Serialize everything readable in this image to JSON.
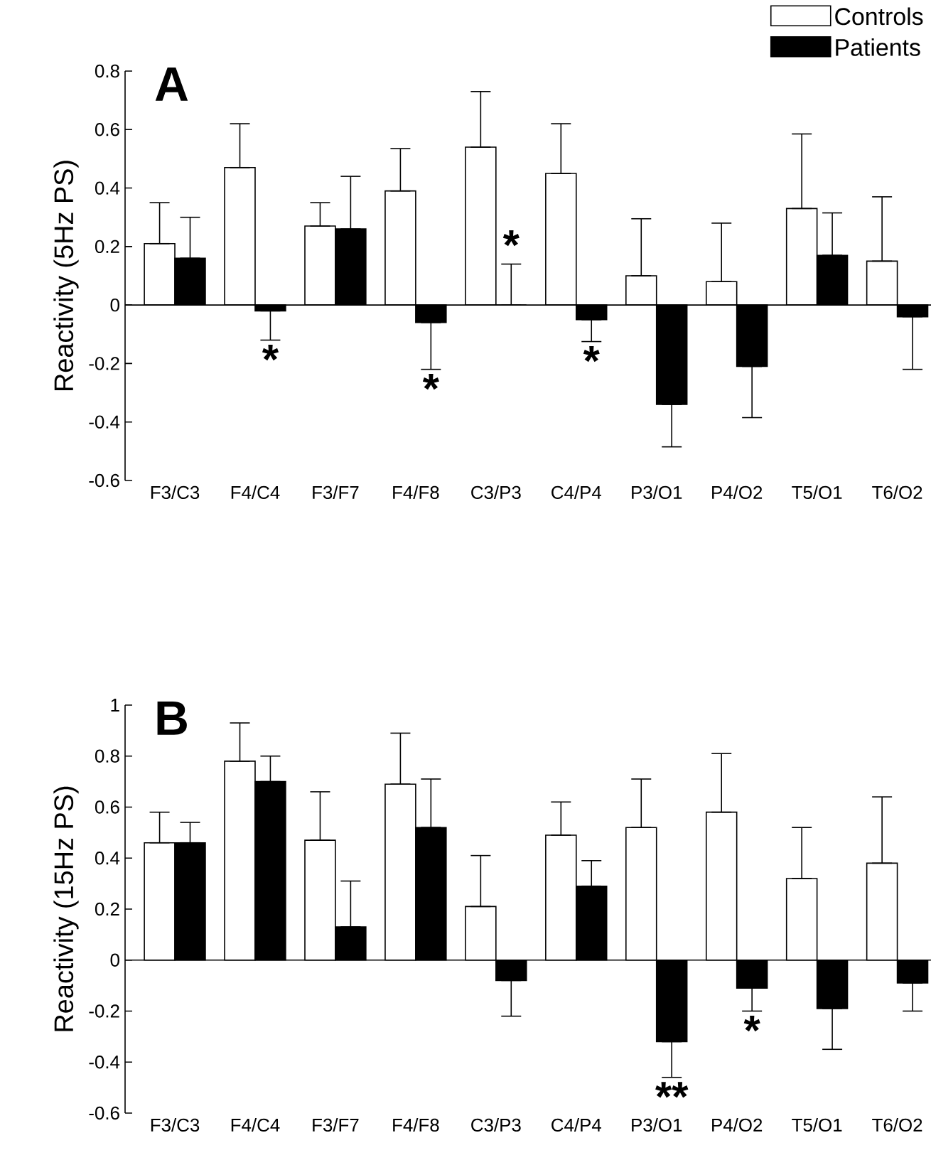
{
  "chart_data": [
    {
      "type": "bar",
      "title": "A",
      "ylabel": "Reactivity (5Hz PS)",
      "categories": [
        "F3/C3",
        "F4/C4",
        "F3/F7",
        "F4/F8",
        "C3/P3",
        "C4/P4",
        "P3/O1",
        "P4/O2",
        "T5/O1",
        "T6/O2"
      ],
      "series": [
        {
          "name": "Controls",
          "color": "#ffffff",
          "values": [
            0.21,
            0.47,
            0.27,
            0.39,
            0.54,
            0.45,
            0.1,
            0.08,
            0.33,
            0.15
          ],
          "errors": [
            [
              0.21,
              0.35
            ],
            [
              0.47,
              0.62
            ],
            [
              0.27,
              0.35
            ],
            [
              0.39,
              0.535
            ],
            [
              0.54,
              0.73
            ],
            [
              0.45,
              0.62
            ],
            [
              0.1,
              0.295
            ],
            [
              0.08,
              0.28
            ],
            [
              0.33,
              0.585
            ],
            [
              0.15,
              0.37
            ]
          ]
        },
        {
          "name": "Patients",
          "color": "#000000",
          "values": [
            0.16,
            -0.02,
            0.26,
            -0.06,
            0.0,
            -0.05,
            -0.34,
            -0.21,
            0.17,
            -0.04
          ],
          "errors": [
            [
              0.16,
              0.3
            ],
            [
              -0.12,
              -0.02
            ],
            [
              0.26,
              0.44
            ],
            [
              -0.22,
              -0.06
            ],
            [
              0.0,
              0.14
            ],
            [
              -0.125,
              -0.05
            ],
            [
              -0.485,
              -0.34
            ],
            [
              -0.385,
              -0.21
            ],
            [
              0.17,
              0.315
            ],
            [
              -0.22,
              -0.04
            ]
          ]
        }
      ],
      "ylim": [
        -0.6,
        0.8
      ],
      "yticks": [
        -0.6,
        -0.4,
        -0.2,
        0,
        0.2,
        0.4,
        0.6,
        0.8
      ],
      "annotations": [
        {
          "text": "*",
          "x": "F4/C4",
          "y": -0.12
        },
        {
          "text": "*",
          "x": "F4/F8",
          "y": -0.22
        },
        {
          "text": "*",
          "x": "C3/P3",
          "y": 0.14
        },
        {
          "text": "*",
          "x": "C4/P4",
          "y": -0.125
        }
      ],
      "legend": "top right"
    },
    {
      "type": "bar",
      "title": "B",
      "ylabel": "Reactivity (15Hz PS)",
      "categories": [
        "F3/C3",
        "F4/C4",
        "F3/F7",
        "F4/F8",
        "C3/P3",
        "C4/P4",
        "P3/O1",
        "P4/O2",
        "T5/O1",
        "T6/O2"
      ],
      "series": [
        {
          "color": "#ffffff",
          "values": [
            0.46,
            0.78,
            0.47,
            0.69,
            0.21,
            0.49,
            0.52,
            0.58,
            0.32,
            0.38
          ],
          "errors": [
            [
              0.46,
              0.58
            ],
            [
              0.78,
              0.93
            ],
            [
              0.47,
              0.66
            ],
            [
              0.69,
              0.89
            ],
            [
              0.21,
              0.41
            ],
            [
              0.49,
              0.62
            ],
            [
              0.52,
              0.71
            ],
            [
              0.58,
              0.81
            ],
            [
              0.32,
              0.52
            ],
            [
              0.38,
              0.64
            ]
          ]
        },
        {
          "color": "#000000",
          "values": [
            0.46,
            0.7,
            0.13,
            0.52,
            -0.08,
            0.29,
            -0.32,
            -0.11,
            -0.19,
            -0.09
          ],
          "errors": [
            [
              0.46,
              0.54
            ],
            [
              0.7,
              0.8
            ],
            [
              0.13,
              0.31
            ],
            [
              0.52,
              0.71
            ],
            [
              -0.22,
              -0.08
            ],
            [
              0.29,
              0.39
            ],
            [
              -0.46,
              -0.32
            ],
            [
              -0.2,
              -0.11
            ],
            [
              -0.35,
              -0.19
            ],
            [
              -0.2,
              -0.09
            ]
          ]
        }
      ],
      "ylim": [
        -0.6,
        1
      ],
      "yticks": [
        -0.6,
        -0.4,
        -0.2,
        0,
        0.2,
        0.4,
        0.6,
        0.8,
        1
      ],
      "annotations": [
        {
          "text": "**",
          "x": "P3/O1",
          "y": -0.46
        },
        {
          "text": "*",
          "x": "P4/O2",
          "y": -0.2
        }
      ]
    }
  ]
}
